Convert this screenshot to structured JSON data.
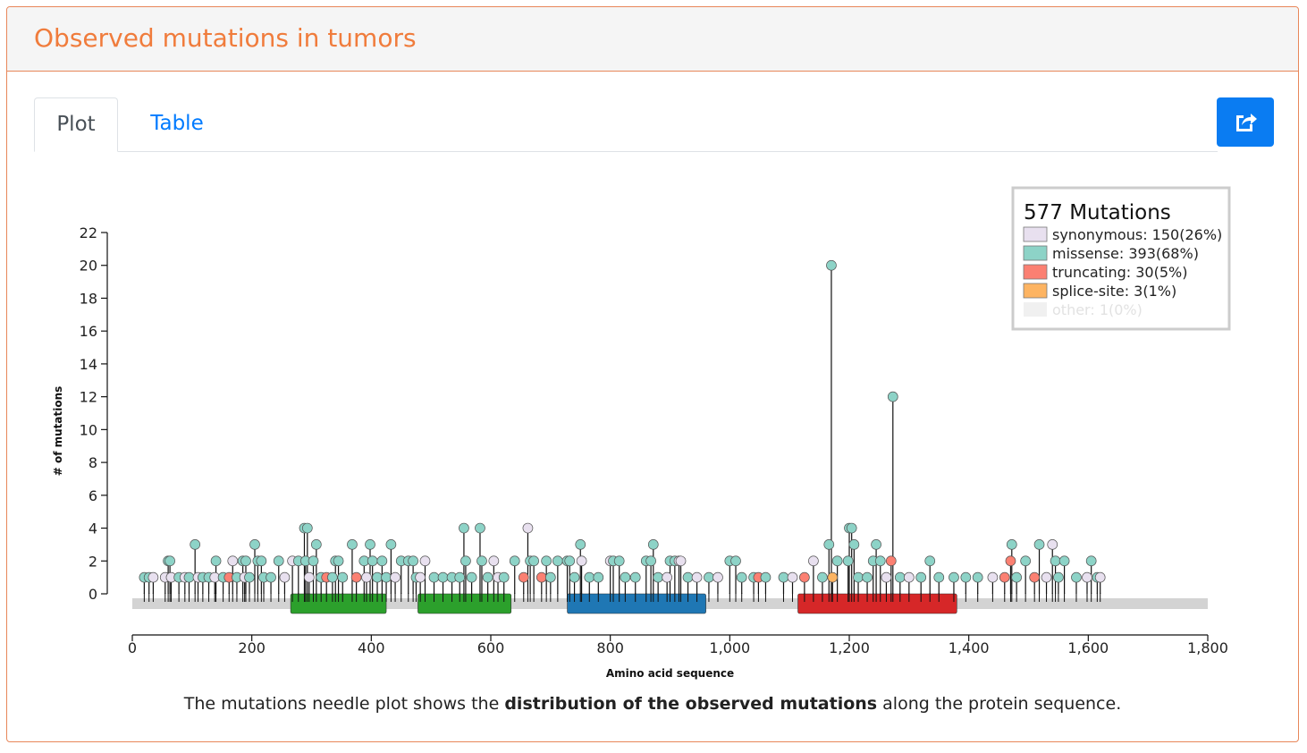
{
  "panel": {
    "title": "Observed mutations in tumors"
  },
  "tabs": [
    {
      "label": "Plot",
      "active": true
    },
    {
      "label": "Table",
      "active": false
    }
  ],
  "export_button": {
    "icon": "share-export-icon",
    "color": "#0a7cf2"
  },
  "caption": {
    "before": "The mutations needle plot shows the ",
    "bold": "distribution of the observed mutations",
    "after": " along the protein sequence."
  },
  "chart_data": {
    "type": "needle",
    "xlabel": "Amino acid sequence",
    "ylabel": "# of mutations",
    "xlim": [
      0,
      1800
    ],
    "ylim": [
      0,
      22
    ],
    "xticks": [
      0,
      200,
      400,
      600,
      800,
      1000,
      1200,
      1400,
      1600,
      1800
    ],
    "xtick_labels": [
      "0",
      "200",
      "400",
      "600",
      "800",
      "1,000",
      "1,200",
      "1,400",
      "1,600",
      "1,800"
    ],
    "yticks": [
      0,
      2,
      4,
      6,
      8,
      10,
      12,
      14,
      16,
      18,
      20,
      22
    ],
    "protein_length": 1800,
    "legend": {
      "title": "577 Mutations",
      "position": "top-right",
      "entries": [
        {
          "key": "synonymous",
          "label": "synonymous: 150(26%)",
          "color": "#e8e0ef"
        },
        {
          "key": "missense",
          "label": "missense: 393(68%)",
          "color": "#8dd3c7"
        },
        {
          "key": "truncating",
          "label": "truncating: 30(5%)",
          "color": "#fb8072"
        },
        {
          "key": "splice",
          "label": "splice-site: 3(1%)",
          "color": "#fdb462"
        },
        {
          "key": "other",
          "label": "other: 1(0%)",
          "color": "#f0f0f0",
          "faded": true
        }
      ]
    },
    "domains": [
      {
        "start": 265,
        "end": 425,
        "color": "#2ca02c"
      },
      {
        "start": 478,
        "end": 634,
        "color": "#2ca02c"
      },
      {
        "start": 728,
        "end": 960,
        "color": "#1f77b4"
      },
      {
        "start": 1114,
        "end": 1380,
        "color": "#d62728"
      }
    ],
    "mutations": [
      {
        "pos": 20,
        "count": 1,
        "type": "missense"
      },
      {
        "pos": 28,
        "count": 1,
        "type": "missense"
      },
      {
        "pos": 35,
        "count": 1,
        "type": "synonymous"
      },
      {
        "pos": 55,
        "count": 1,
        "type": "synonymous"
      },
      {
        "pos": 60,
        "count": 2,
        "type": "missense"
      },
      {
        "pos": 63,
        "count": 2,
        "type": "missense"
      },
      {
        "pos": 65,
        "count": 1,
        "type": "synonymous"
      },
      {
        "pos": 78,
        "count": 1,
        "type": "missense"
      },
      {
        "pos": 88,
        "count": 1,
        "type": "synonymous"
      },
      {
        "pos": 95,
        "count": 1,
        "type": "missense"
      },
      {
        "pos": 105,
        "count": 3,
        "type": "missense"
      },
      {
        "pos": 110,
        "count": 1,
        "type": "synonymous"
      },
      {
        "pos": 118,
        "count": 1,
        "type": "missense"
      },
      {
        "pos": 128,
        "count": 1,
        "type": "missense"
      },
      {
        "pos": 138,
        "count": 1,
        "type": "synonymous"
      },
      {
        "pos": 140,
        "count": 2,
        "type": "missense"
      },
      {
        "pos": 152,
        "count": 1,
        "type": "missense"
      },
      {
        "pos": 162,
        "count": 1,
        "type": "truncating"
      },
      {
        "pos": 168,
        "count": 2,
        "type": "synonymous"
      },
      {
        "pos": 175,
        "count": 1,
        "type": "missense"
      },
      {
        "pos": 185,
        "count": 2,
        "type": "missense"
      },
      {
        "pos": 190,
        "count": 2,
        "type": "missense"
      },
      {
        "pos": 188,
        "count": 1,
        "type": "synonymous"
      },
      {
        "pos": 196,
        "count": 1,
        "type": "missense"
      },
      {
        "pos": 205,
        "count": 3,
        "type": "missense"
      },
      {
        "pos": 210,
        "count": 2,
        "type": "missense"
      },
      {
        "pos": 216,
        "count": 2,
        "type": "missense"
      },
      {
        "pos": 220,
        "count": 1,
        "type": "missense"
      },
      {
        "pos": 232,
        "count": 1,
        "type": "missense"
      },
      {
        "pos": 245,
        "count": 2,
        "type": "missense"
      },
      {
        "pos": 255,
        "count": 1,
        "type": "synonymous"
      },
      {
        "pos": 268,
        "count": 2,
        "type": "synonymous"
      },
      {
        "pos": 278,
        "count": 2,
        "type": "missense"
      },
      {
        "pos": 288,
        "count": 4,
        "type": "missense"
      },
      {
        "pos": 293,
        "count": 4,
        "type": "missense"
      },
      {
        "pos": 290,
        "count": 2,
        "type": "missense"
      },
      {
        "pos": 296,
        "count": 1,
        "type": "synonymous"
      },
      {
        "pos": 303,
        "count": 2,
        "type": "missense"
      },
      {
        "pos": 308,
        "count": 3,
        "type": "missense"
      },
      {
        "pos": 316,
        "count": 1,
        "type": "missense"
      },
      {
        "pos": 325,
        "count": 1,
        "type": "truncating"
      },
      {
        "pos": 335,
        "count": 1,
        "type": "missense"
      },
      {
        "pos": 340,
        "count": 2,
        "type": "missense"
      },
      {
        "pos": 345,
        "count": 2,
        "type": "missense"
      },
      {
        "pos": 352,
        "count": 1,
        "type": "missense"
      },
      {
        "pos": 368,
        "count": 3,
        "type": "missense"
      },
      {
        "pos": 375,
        "count": 1,
        "type": "truncating"
      },
      {
        "pos": 388,
        "count": 2,
        "type": "missense"
      },
      {
        "pos": 392,
        "count": 1,
        "type": "synonymous"
      },
      {
        "pos": 398,
        "count": 3,
        "type": "missense"
      },
      {
        "pos": 402,
        "count": 2,
        "type": "missense"
      },
      {
        "pos": 410,
        "count": 1,
        "type": "missense"
      },
      {
        "pos": 418,
        "count": 2,
        "type": "missense"
      },
      {
        "pos": 425,
        "count": 1,
        "type": "missense"
      },
      {
        "pos": 433,
        "count": 3,
        "type": "missense"
      },
      {
        "pos": 440,
        "count": 1,
        "type": "synonymous"
      },
      {
        "pos": 450,
        "count": 2,
        "type": "missense"
      },
      {
        "pos": 462,
        "count": 2,
        "type": "missense"
      },
      {
        "pos": 470,
        "count": 2,
        "type": "missense"
      },
      {
        "pos": 475,
        "count": 1,
        "type": "missense"
      },
      {
        "pos": 482,
        "count": 1,
        "type": "synonymous"
      },
      {
        "pos": 490,
        "count": 2,
        "type": "synonymous"
      },
      {
        "pos": 505,
        "count": 1,
        "type": "missense"
      },
      {
        "pos": 520,
        "count": 1,
        "type": "missense"
      },
      {
        "pos": 535,
        "count": 1,
        "type": "missense"
      },
      {
        "pos": 548,
        "count": 1,
        "type": "missense"
      },
      {
        "pos": 555,
        "count": 4,
        "type": "missense"
      },
      {
        "pos": 558,
        "count": 2,
        "type": "missense"
      },
      {
        "pos": 568,
        "count": 1,
        "type": "missense"
      },
      {
        "pos": 582,
        "count": 4,
        "type": "missense"
      },
      {
        "pos": 585,
        "count": 2,
        "type": "missense"
      },
      {
        "pos": 595,
        "count": 1,
        "type": "missense"
      },
      {
        "pos": 605,
        "count": 2,
        "type": "synonymous"
      },
      {
        "pos": 612,
        "count": 1,
        "type": "synonymous"
      },
      {
        "pos": 622,
        "count": 1,
        "type": "missense"
      },
      {
        "pos": 640,
        "count": 2,
        "type": "missense"
      },
      {
        "pos": 655,
        "count": 1,
        "type": "truncating"
      },
      {
        "pos": 662,
        "count": 4,
        "type": "synonymous"
      },
      {
        "pos": 666,
        "count": 2,
        "type": "missense"
      },
      {
        "pos": 672,
        "count": 2,
        "type": "missense"
      },
      {
        "pos": 685,
        "count": 1,
        "type": "truncating"
      },
      {
        "pos": 693,
        "count": 2,
        "type": "missense"
      },
      {
        "pos": 700,
        "count": 1,
        "type": "missense"
      },
      {
        "pos": 712,
        "count": 2,
        "type": "missense"
      },
      {
        "pos": 728,
        "count": 2,
        "type": "missense"
      },
      {
        "pos": 732,
        "count": 2,
        "type": "missense"
      },
      {
        "pos": 740,
        "count": 1,
        "type": "missense"
      },
      {
        "pos": 750,
        "count": 3,
        "type": "missense"
      },
      {
        "pos": 752,
        "count": 2,
        "type": "synonymous"
      },
      {
        "pos": 765,
        "count": 1,
        "type": "missense"
      },
      {
        "pos": 780,
        "count": 1,
        "type": "missense"
      },
      {
        "pos": 800,
        "count": 2,
        "type": "synonymous"
      },
      {
        "pos": 805,
        "count": 2,
        "type": "missense"
      },
      {
        "pos": 815,
        "count": 2,
        "type": "missense"
      },
      {
        "pos": 825,
        "count": 1,
        "type": "missense"
      },
      {
        "pos": 842,
        "count": 1,
        "type": "missense"
      },
      {
        "pos": 860,
        "count": 2,
        "type": "missense"
      },
      {
        "pos": 872,
        "count": 3,
        "type": "missense"
      },
      {
        "pos": 868,
        "count": 2,
        "type": "missense"
      },
      {
        "pos": 880,
        "count": 1,
        "type": "missense"
      },
      {
        "pos": 895,
        "count": 1,
        "type": "synonymous"
      },
      {
        "pos": 900,
        "count": 2,
        "type": "missense"
      },
      {
        "pos": 908,
        "count": 2,
        "type": "missense"
      },
      {
        "pos": 915,
        "count": 2,
        "type": "synonymous"
      },
      {
        "pos": 918,
        "count": 2,
        "type": "synonymous"
      },
      {
        "pos": 930,
        "count": 1,
        "type": "missense"
      },
      {
        "pos": 945,
        "count": 1,
        "type": "synonymous"
      },
      {
        "pos": 965,
        "count": 1,
        "type": "missense"
      },
      {
        "pos": 980,
        "count": 1,
        "type": "synonymous"
      },
      {
        "pos": 1000,
        "count": 2,
        "type": "missense"
      },
      {
        "pos": 1010,
        "count": 2,
        "type": "missense"
      },
      {
        "pos": 1020,
        "count": 1,
        "type": "missense"
      },
      {
        "pos": 1040,
        "count": 1,
        "type": "missense"
      },
      {
        "pos": 1048,
        "count": 1,
        "type": "truncating"
      },
      {
        "pos": 1060,
        "count": 1,
        "type": "missense"
      },
      {
        "pos": 1090,
        "count": 1,
        "type": "missense"
      },
      {
        "pos": 1105,
        "count": 1,
        "type": "synonymous"
      },
      {
        "pos": 1125,
        "count": 1,
        "type": "truncating"
      },
      {
        "pos": 1140,
        "count": 2,
        "type": "synonymous"
      },
      {
        "pos": 1155,
        "count": 1,
        "type": "missense"
      },
      {
        "pos": 1166,
        "count": 3,
        "type": "missense"
      },
      {
        "pos": 1170,
        "count": 20,
        "type": "missense"
      },
      {
        "pos": 1172,
        "count": 1,
        "type": "splice"
      },
      {
        "pos": 1180,
        "count": 2,
        "type": "missense"
      },
      {
        "pos": 1198,
        "count": 2,
        "type": "missense"
      },
      {
        "pos": 1200,
        "count": 4,
        "type": "missense"
      },
      {
        "pos": 1204,
        "count": 4,
        "type": "missense"
      },
      {
        "pos": 1208,
        "count": 3,
        "type": "missense"
      },
      {
        "pos": 1215,
        "count": 1,
        "type": "missense"
      },
      {
        "pos": 1230,
        "count": 1,
        "type": "missense"
      },
      {
        "pos": 1240,
        "count": 2,
        "type": "missense"
      },
      {
        "pos": 1245,
        "count": 3,
        "type": "missense"
      },
      {
        "pos": 1252,
        "count": 2,
        "type": "missense"
      },
      {
        "pos": 1262,
        "count": 1,
        "type": "synonymous"
      },
      {
        "pos": 1270,
        "count": 2,
        "type": "truncating"
      },
      {
        "pos": 1273,
        "count": 12,
        "type": "missense"
      },
      {
        "pos": 1285,
        "count": 1,
        "type": "missense"
      },
      {
        "pos": 1300,
        "count": 1,
        "type": "synonymous"
      },
      {
        "pos": 1320,
        "count": 1,
        "type": "missense"
      },
      {
        "pos": 1335,
        "count": 2,
        "type": "missense"
      },
      {
        "pos": 1350,
        "count": 1,
        "type": "missense"
      },
      {
        "pos": 1375,
        "count": 1,
        "type": "missense"
      },
      {
        "pos": 1395,
        "count": 1,
        "type": "missense"
      },
      {
        "pos": 1415,
        "count": 1,
        "type": "missense"
      },
      {
        "pos": 1440,
        "count": 1,
        "type": "synonymous"
      },
      {
        "pos": 1460,
        "count": 1,
        "type": "truncating"
      },
      {
        "pos": 1470,
        "count": 2,
        "type": "truncating"
      },
      {
        "pos": 1472,
        "count": 3,
        "type": "missense"
      },
      {
        "pos": 1480,
        "count": 1,
        "type": "missense"
      },
      {
        "pos": 1495,
        "count": 2,
        "type": "missense"
      },
      {
        "pos": 1510,
        "count": 1,
        "type": "truncating"
      },
      {
        "pos": 1518,
        "count": 3,
        "type": "missense"
      },
      {
        "pos": 1530,
        "count": 1,
        "type": "synonymous"
      },
      {
        "pos": 1540,
        "count": 3,
        "type": "synonymous"
      },
      {
        "pos": 1545,
        "count": 2,
        "type": "missense"
      },
      {
        "pos": 1550,
        "count": 1,
        "type": "missense"
      },
      {
        "pos": 1560,
        "count": 2,
        "type": "missense"
      },
      {
        "pos": 1580,
        "count": 1,
        "type": "missense"
      },
      {
        "pos": 1598,
        "count": 1,
        "type": "synonymous"
      },
      {
        "pos": 1605,
        "count": 2,
        "type": "missense"
      },
      {
        "pos": 1615,
        "count": 1,
        "type": "missense"
      },
      {
        "pos": 1620,
        "count": 1,
        "type": "synonymous"
      }
    ]
  }
}
